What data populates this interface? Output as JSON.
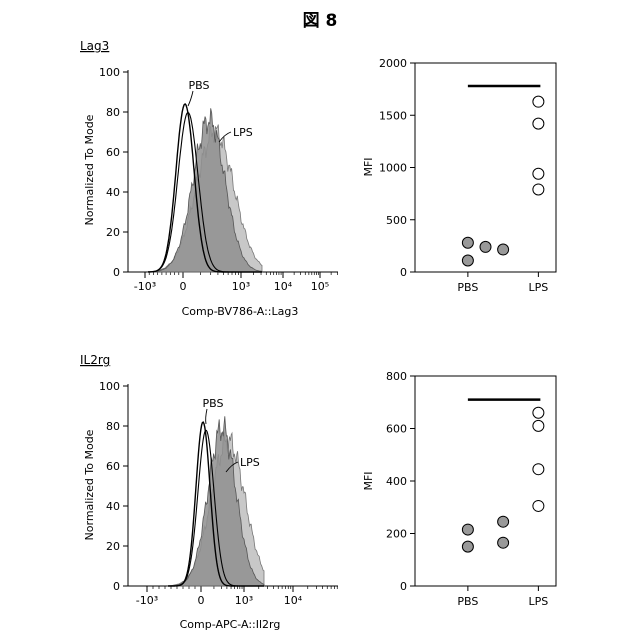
{
  "figure_title": "図 8",
  "chart_data": [
    {
      "type": "area",
      "panel_label": "Lag3",
      "ylabel": "Normalized To Mode",
      "xlabel": "Comp-BV786-A::Lag3",
      "ylim": [
        0,
        100
      ],
      "y_ticks": [
        "0",
        "20",
        "40",
        "60",
        "80",
        "100"
      ],
      "x_ticks": [
        "-10³",
        "0",
        "10³",
        "10⁴",
        "10⁵"
      ],
      "annotations": [
        "PBS",
        "LPS"
      ],
      "series": [
        {
          "name": "PBS",
          "style": "outline",
          "peak": 84
        },
        {
          "name": "LPS",
          "style": "filled",
          "peak": 76
        }
      ]
    },
    {
      "type": "scatter",
      "ylabel": "MFI",
      "ylim": [
        0,
        2000
      ],
      "y_ticks": [
        "0",
        "500",
        "1000",
        "1500",
        "2000"
      ],
      "categories": [
        "PBS",
        "LPS"
      ],
      "series": [
        {
          "name": "PBS",
          "fill": "#999999",
          "points": [
            [
              1,
              280
            ],
            [
              1,
              110
            ],
            [
              1.25,
              240
            ],
            [
              1.5,
              215
            ]
          ]
        },
        {
          "name": "LPS",
          "fill": "#ffffff",
          "points": [
            [
              2,
              1630
            ],
            [
              2,
              1420
            ],
            [
              2,
              940
            ],
            [
              2,
              790
            ]
          ]
        }
      ],
      "bar": {
        "from": 1,
        "to": 2,
        "y": 1780
      }
    },
    {
      "type": "area",
      "panel_label": "IL2rg",
      "ylabel": "Normalized To Mode",
      "xlabel": "Comp-APC-A::Il2rg",
      "ylim": [
        0,
        100
      ],
      "y_ticks": [
        "0",
        "20",
        "40",
        "60",
        "80",
        "100"
      ],
      "x_ticks": [
        "-10³",
        "0",
        "10³",
        "10⁴"
      ],
      "annotations": [
        "PBS",
        "LPS"
      ],
      "series": [
        {
          "name": "PBS",
          "style": "outline",
          "peak": 82
        },
        {
          "name": "LPS",
          "style": "filled",
          "peak": 79
        }
      ]
    },
    {
      "type": "scatter",
      "ylabel": "MFI",
      "ylim": [
        0,
        800
      ],
      "y_ticks": [
        "0",
        "200",
        "400",
        "600",
        "800"
      ],
      "categories": [
        "PBS",
        "LPS"
      ],
      "series": [
        {
          "name": "PBS",
          "fill": "#999999",
          "points": [
            [
              1,
              215
            ],
            [
              1,
              150
            ],
            [
              1.5,
              245
            ],
            [
              1.5,
              165
            ]
          ]
        },
        {
          "name": "LPS",
          "fill": "#ffffff",
          "points": [
            [
              2,
              660
            ],
            [
              2,
              610
            ],
            [
              2,
              445
            ],
            [
              2,
              305
            ]
          ]
        }
      ],
      "bar": {
        "from": 1,
        "to": 2,
        "y": 710
      }
    }
  ]
}
